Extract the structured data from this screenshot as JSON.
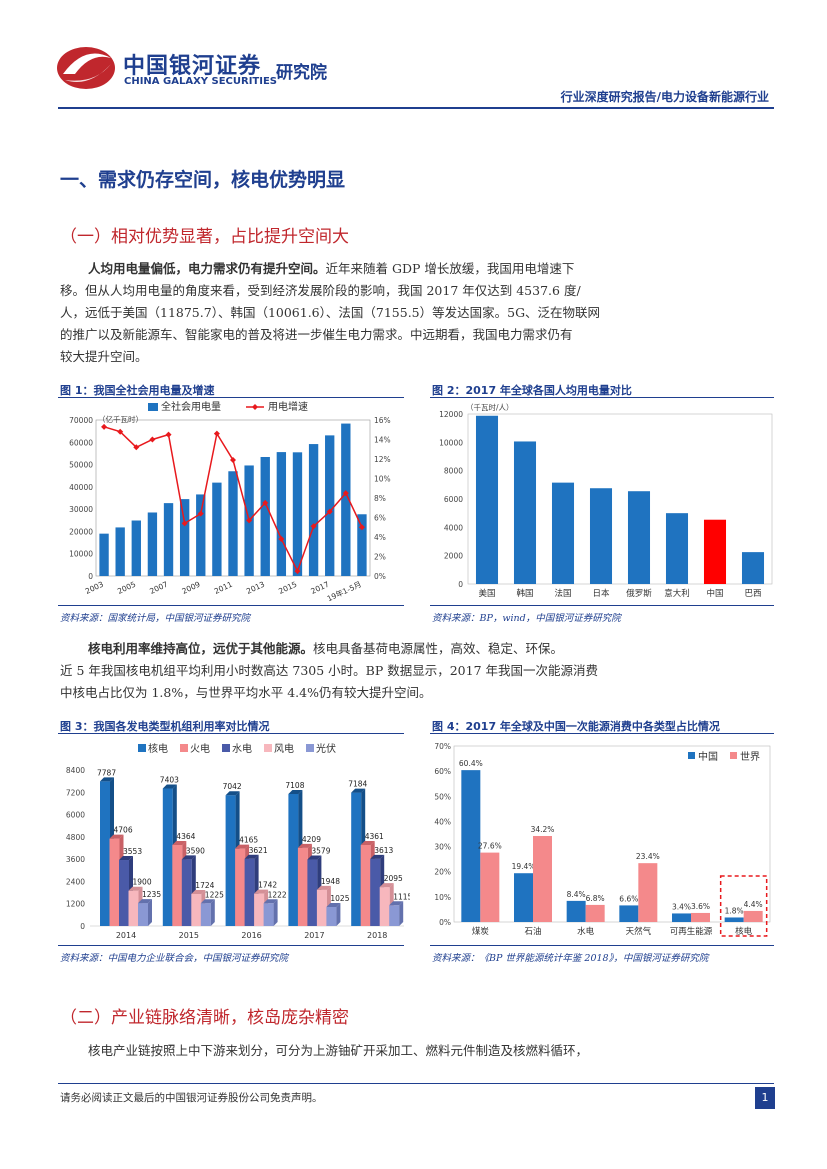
{
  "header": {
    "logo_cn": "中国银河证券",
    "logo_en": "CHINA GALAXY SECURITIES",
    "institute": "研究院",
    "report_type": "行业深度研究报告/电力设备新能源行业"
  },
  "section1": {
    "title": "一、需求仍存空间，核电优势明显",
    "sub1": "（一）相对优势显著，占比提升空间大",
    "para1_bold": "人均用电量偏低，电力需求仍有提升空间。",
    "para1_lines": [
      "近年来随着 GDP 增长放缓，我国用电增速下",
      "移。但从人均用电量的角度来看，受到经济发展阶段的影响，我国 2017 年仅达到 4537.6 度/",
      "人，远低于美国（11875.7）、韩国（10061.6）、法国（7155.5）等发达国家。5G、泛在物联网",
      "的推广以及新能源车、智能家电的普及将进一步催生电力需求。中远期看，我国电力需求仍有",
      "较大提升空间。"
    ],
    "para2_bold": "核电利用率维持高位，远优于其他能源。",
    "para2_lines": [
      "核电具备基荷电源属性，高效、稳定、环保。",
      "近 5 年我国核电机组平均利用小时数高达 7305 小时。BP 数据显示，2017 年我国一次能源消费",
      "中核电占比仅为 1.8%，与世界平均水平 4.4%仍有较大提升空间。"
    ],
    "sub2": "（二）产业链脉络清晰，核岛庞杂精密",
    "para3": "核电产业链按照上中下游来划分，可分为上游铀矿开采加工、燃料元件制造及核燃料循环，"
  },
  "fig1": {
    "title": "图 1：我国全社会用电量及增速",
    "source": "资料来源：国家统计局，中国银河证券研究院",
    "unit": "（亿千瓦时）",
    "legend": [
      "全社会用电量",
      "用电增速"
    ]
  },
  "fig2": {
    "title": "图 2：2017 年全球各国人均用电量对比",
    "source": "资料来源：BP，wind，中国银河证券研究院",
    "unit": "（千瓦时/人）"
  },
  "fig3": {
    "title": "图 3：我国各发电类型机组利用率对比情况",
    "source": "资料来源：中国电力企业联合会，中国银河证券研究院",
    "legend": [
      "核电",
      "火电",
      "水电",
      "风电",
      "光伏"
    ]
  },
  "fig4": {
    "title": "图 4：2017 年全球及中国一次能源消费中各类型占比情况",
    "source": "资料来源：《BP 世界能源统计年鉴 2018》，中国银河证券研究院",
    "legend": [
      "中国",
      "世界"
    ]
  },
  "footer": {
    "disclaimer": "请务必阅读正文最后的中国银河证券股份公司免责声明。",
    "page": "1"
  },
  "colors": {
    "brand_blue": "#1f3f8f",
    "brand_red": "#c0272d",
    "bar_blue": "#1f73c0",
    "bar_red": "#ff0000",
    "world_pink": "#f4898b"
  },
  "chart_data": [
    {
      "type": "bar",
      "title": "图 1：我国全社会用电量及增速",
      "ylabel": "（亿千瓦时）",
      "categories": [
        "2003",
        "2004",
        "2005",
        "2006",
        "2007",
        "2008",
        "2009",
        "2010",
        "2011",
        "2012",
        "2013",
        "2014",
        "2015",
        "2016",
        "2017",
        "2018",
        "19年1-5月"
      ],
      "x_tick_labels": [
        "2003",
        "2005",
        "2007",
        "2009",
        "2011",
        "2013",
        "2015",
        "2017",
        "19年1-5月"
      ],
      "ylim": [
        0,
        70000
      ],
      "y_ticks": [
        "0",
        "10000",
        "20000",
        "30000",
        "40000",
        "50000",
        "60000",
        "70000"
      ],
      "y2lim": [
        0,
        16
      ],
      "y2_ticks": [
        "0%",
        "2%",
        "4%",
        "6%",
        "8%",
        "10%",
        "12%",
        "14%",
        "16%"
      ],
      "series": [
        {
          "name": "全社会用电量",
          "type": "bar",
          "values": [
            19000,
            21800,
            24900,
            28500,
            32700,
            34500,
            36600,
            41900,
            47000,
            49600,
            53400,
            55600,
            55500,
            59200,
            63100,
            68400,
            27700
          ]
        },
        {
          "name": "用电增速",
          "type": "line",
          "axis": "y2",
          "values": [
            15.3,
            14.8,
            13.2,
            14.0,
            14.5,
            5.4,
            6.4,
            14.6,
            11.9,
            5.7,
            7.5,
            3.8,
            0.5,
            5.1,
            6.6,
            8.5,
            5.0
          ]
        }
      ]
    },
    {
      "type": "bar",
      "title": "图 2：2017 年全球各国人均用电量对比",
      "ylabel": "（千瓦时/人）",
      "categories": [
        "美国",
        "韩国",
        "法国",
        "日本",
        "俄罗斯",
        "意大利",
        "中国",
        "巴西"
      ],
      "ylim": [
        0,
        12000
      ],
      "y_ticks": [
        "0",
        "2000",
        "4000",
        "6000",
        "8000",
        "10000",
        "12000"
      ],
      "values": [
        11875.7,
        10061.6,
        7155.5,
        6760,
        6550,
        5000,
        4537.6,
        2250
      ],
      "highlight": "中国"
    },
    {
      "type": "bar",
      "title": "图 3：我国各发电类型机组利用率对比情况",
      "categories": [
        "2014",
        "2015",
        "2016",
        "2017",
        "2018"
      ],
      "ylim": [
        0,
        8400
      ],
      "y_ticks": [
        "0",
        "1200",
        "2400",
        "3600",
        "4800",
        "6000",
        "7200",
        "8400"
      ],
      "series": [
        {
          "name": "核电",
          "values": [
            7787,
            7403,
            7042,
            7108,
            7184
          ]
        },
        {
          "name": "火电",
          "values": [
            4706,
            4364,
            4165,
            4209,
            4361
          ]
        },
        {
          "name": "水电",
          "values": [
            3553,
            3590,
            3621,
            3579,
            3613
          ]
        },
        {
          "name": "风电",
          "values": [
            1900,
            1724,
            1742,
            1948,
            2095
          ]
        },
        {
          "name": "光伏",
          "values": [
            1235,
            1225,
            1222,
            1025,
            1115
          ]
        }
      ]
    },
    {
      "type": "bar",
      "title": "图 4：2017 年全球及中国一次能源消费中各类型占比情况",
      "categories": [
        "煤炭",
        "石油",
        "水电",
        "天然气",
        "可再生能源",
        "核电"
      ],
      "ylim": [
        0,
        70
      ],
      "y_ticks": [
        "0%",
        "10%",
        "20%",
        "30%",
        "40%",
        "50%",
        "60%",
        "70%"
      ],
      "series": [
        {
          "name": "中国",
          "values": [
            60.4,
            19.4,
            8.4,
            6.6,
            3.4,
            1.8
          ],
          "labels": [
            "60.4%",
            "19.4%",
            "8.4%",
            "6.6%",
            "3.4%",
            "1.8%"
          ]
        },
        {
          "name": "世界",
          "values": [
            27.6,
            34.2,
            6.8,
            23.4,
            3.6,
            4.4
          ],
          "labels": [
            "27.6%",
            "34.2%",
            "6.8%",
            "23.4%",
            "3.6%",
            "4.4%"
          ]
        }
      ],
      "highlight": "核电"
    }
  ]
}
